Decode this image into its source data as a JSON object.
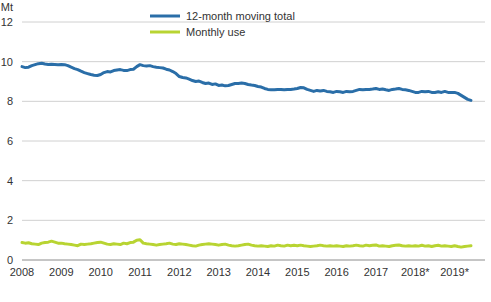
{
  "chart_data": {
    "type": "line",
    "y_label": "Mt",
    "categories": [
      "2008",
      null,
      null,
      null,
      null,
      null,
      null,
      null,
      null,
      null,
      null,
      null,
      "2009",
      null,
      null,
      null,
      null,
      null,
      null,
      null,
      null,
      null,
      null,
      null,
      "2010",
      null,
      null,
      null,
      null,
      null,
      null,
      null,
      null,
      null,
      null,
      null,
      "2011",
      null,
      null,
      null,
      null,
      null,
      null,
      null,
      null,
      null,
      null,
      null,
      "2012",
      null,
      null,
      null,
      null,
      null,
      null,
      null,
      null,
      null,
      null,
      null,
      "2013",
      null,
      null,
      null,
      null,
      null,
      null,
      null,
      null,
      null,
      null,
      null,
      "2014",
      null,
      null,
      null,
      null,
      null,
      null,
      null,
      null,
      null,
      null,
      null,
      "2015",
      null,
      null,
      null,
      null,
      null,
      null,
      null,
      null,
      null,
      null,
      null,
      "2016",
      null,
      null,
      null,
      null,
      null,
      null,
      null,
      null,
      null,
      null,
      null,
      "2017",
      null,
      null,
      null,
      null,
      null,
      null,
      null,
      null,
      null,
      null,
      null,
      "2018*",
      null,
      null,
      null,
      null,
      null,
      null,
      null,
      null,
      null,
      null,
      null,
      "2019*",
      null,
      null,
      null,
      null,
      null
    ],
    "series": [
      {
        "name": "12-month moving total",
        "color": "#2a6ea8",
        "values": [
          9.75,
          9.7,
          9.72,
          9.8,
          9.85,
          9.9,
          9.92,
          9.88,
          9.86,
          9.87,
          9.86,
          9.85,
          9.86,
          9.85,
          9.8,
          9.72,
          9.65,
          9.6,
          9.52,
          9.45,
          9.4,
          9.35,
          9.32,
          9.3,
          9.35,
          9.45,
          9.5,
          9.48,
          9.55,
          9.58,
          9.6,
          9.56,
          9.55,
          9.6,
          9.62,
          9.75,
          9.85,
          9.8,
          9.78,
          9.8,
          9.75,
          9.72,
          9.7,
          9.68,
          9.62,
          9.58,
          9.5,
          9.4,
          9.25,
          9.2,
          9.18,
          9.12,
          9.05,
          9.0,
          9.02,
          8.95,
          8.9,
          8.92,
          8.85,
          8.88,
          8.8,
          8.82,
          8.78,
          8.8,
          8.85,
          8.9,
          8.9,
          8.92,
          8.9,
          8.85,
          8.82,
          8.8,
          8.75,
          8.72,
          8.65,
          8.6,
          8.58,
          8.58,
          8.6,
          8.6,
          8.58,
          8.6,
          8.6,
          8.62,
          8.65,
          8.7,
          8.68,
          8.6,
          8.55,
          8.5,
          8.55,
          8.52,
          8.55,
          8.5,
          8.48,
          8.45,
          8.5,
          8.48,
          8.45,
          8.5,
          8.48,
          8.5,
          8.55,
          8.6,
          8.58,
          8.6,
          8.6,
          8.62,
          8.65,
          8.6,
          8.62,
          8.58,
          8.55,
          8.6,
          8.62,
          8.65,
          8.6,
          8.58,
          8.55,
          8.5,
          8.45,
          8.45,
          8.5,
          8.48,
          8.5,
          8.45,
          8.45,
          8.48,
          8.45,
          8.5,
          8.45,
          8.45,
          8.45,
          8.4,
          8.3,
          8.2,
          8.1,
          8.05
        ]
      },
      {
        "name": "Monthly use",
        "color": "#b8d432",
        "values": [
          0.88,
          0.85,
          0.87,
          0.82,
          0.8,
          0.78,
          0.85,
          0.88,
          0.9,
          0.95,
          0.9,
          0.85,
          0.85,
          0.82,
          0.8,
          0.78,
          0.75,
          0.72,
          0.8,
          0.78,
          0.8,
          0.82,
          0.85,
          0.88,
          0.9,
          0.85,
          0.8,
          0.78,
          0.82,
          0.8,
          0.78,
          0.85,
          0.82,
          0.88,
          0.9,
          1.0,
          1.02,
          0.85,
          0.82,
          0.8,
          0.78,
          0.75,
          0.78,
          0.8,
          0.82,
          0.85,
          0.8,
          0.78,
          0.82,
          0.8,
          0.78,
          0.75,
          0.72,
          0.7,
          0.75,
          0.78,
          0.8,
          0.82,
          0.8,
          0.78,
          0.75,
          0.78,
          0.8,
          0.75,
          0.72,
          0.7,
          0.72,
          0.75,
          0.78,
          0.8,
          0.75,
          0.72,
          0.7,
          0.72,
          0.7,
          0.68,
          0.72,
          0.7,
          0.75,
          0.72,
          0.7,
          0.75,
          0.72,
          0.74,
          0.72,
          0.75,
          0.72,
          0.7,
          0.68,
          0.7,
          0.72,
          0.75,
          0.72,
          0.7,
          0.72,
          0.7,
          0.72,
          0.7,
          0.68,
          0.72,
          0.7,
          0.72,
          0.75,
          0.72,
          0.7,
          0.75,
          0.72,
          0.74,
          0.76,
          0.7,
          0.72,
          0.7,
          0.68,
          0.72,
          0.74,
          0.76,
          0.72,
          0.7,
          0.72,
          0.7,
          0.72,
          0.7,
          0.74,
          0.7,
          0.72,
          0.68,
          0.72,
          0.74,
          0.7,
          0.72,
          0.7,
          0.68,
          0.72,
          0.68,
          0.65,
          0.68,
          0.7,
          0.72
        ]
      }
    ],
    "ylim": [
      0,
      12
    ],
    "yticks": [
      0,
      2,
      4,
      6,
      8,
      10,
      12
    ],
    "grid": true,
    "legend": "top"
  }
}
